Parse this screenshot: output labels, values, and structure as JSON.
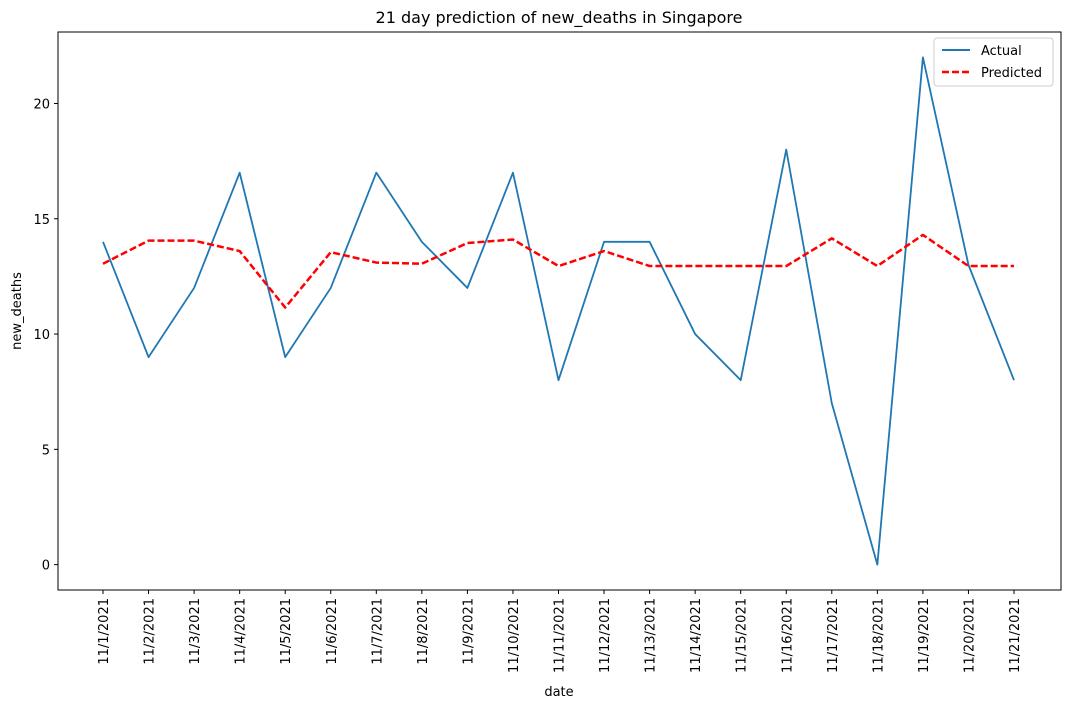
{
  "chart_data": {
    "type": "line",
    "title": "21 day prediction of new_deaths in Singapore",
    "xlabel": "date",
    "ylabel": "new_deaths",
    "categories": [
      "11/1/2021",
      "11/2/2021",
      "11/3/2021",
      "11/4/2021",
      "11/5/2021",
      "11/6/2021",
      "11/7/2021",
      "11/8/2021",
      "11/9/2021",
      "11/10/2021",
      "11/11/2021",
      "11/12/2021",
      "11/13/2021",
      "11/14/2021",
      "11/15/2021",
      "11/16/2021",
      "11/17/2021",
      "11/18/2021",
      "11/19/2021",
      "11/20/2021",
      "11/21/2021"
    ],
    "series": [
      {
        "name": "Actual",
        "color": "#1f77b4",
        "style": "solid",
        "values": [
          14,
          9,
          12,
          17,
          9,
          12,
          17,
          14,
          12,
          17,
          8,
          14,
          14,
          10,
          8,
          18,
          7,
          0,
          22,
          13,
          8
        ]
      },
      {
        "name": "Predicted",
        "color": "#ff0000",
        "style": "dashed",
        "values": [
          13.05,
          14.05,
          14.05,
          13.6,
          11.15,
          13.55,
          13.1,
          13.05,
          13.95,
          14.1,
          12.95,
          13.6,
          12.95,
          12.95,
          12.95,
          12.95,
          14.15,
          12.95,
          14.3,
          12.95,
          12.95
        ]
      }
    ],
    "yticks": [
      0,
      5,
      10,
      15,
      20
    ],
    "ylim": [
      -1.1,
      23.1
    ],
    "grid": false,
    "legend_position": "top-right"
  }
}
